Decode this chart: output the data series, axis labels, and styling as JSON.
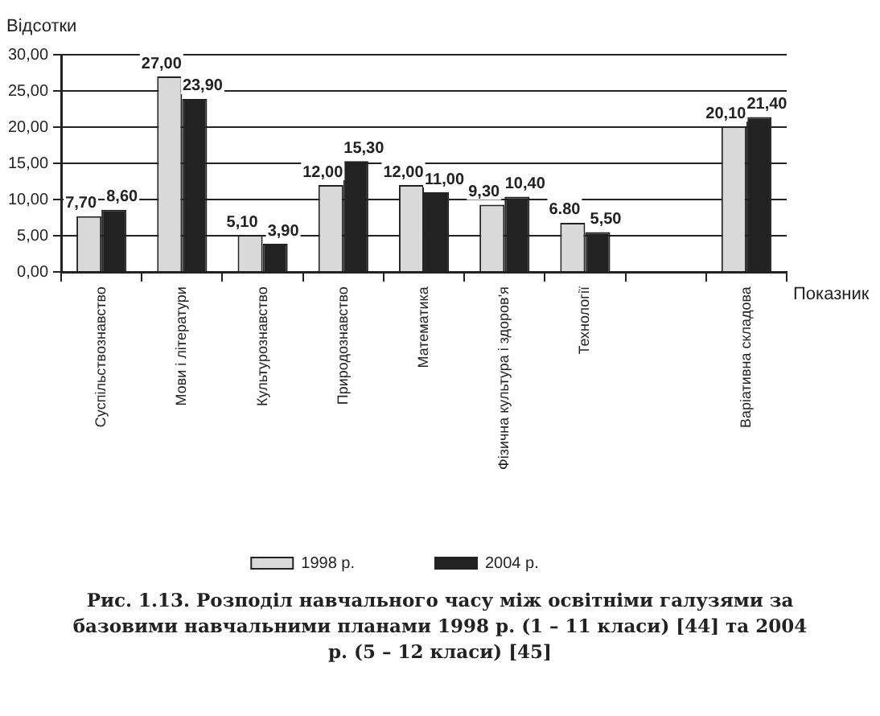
{
  "chart_data": {
    "type": "bar",
    "title": "Рис. 1.13. Розподіл навчального часу між освітніми галузями за базовими навчальними планами 1998 р. (1 – 11 класи) [44] та 2004 р. (5 – 12 класи) [45]",
    "xlabel": "Показник",
    "ylabel": "Відсотки",
    "categories": [
      "Суспільствознавство",
      "Мови і літератури",
      "Культурознавство",
      "Природознавство",
      "Математика",
      "Фізична культура і здоров'я",
      "Технології",
      null,
      "Варіативна складова"
    ],
    "series": [
      {
        "name": "1998 р.",
        "color": "#d9d9d9",
        "values": [
          7.7,
          27,
          5.1,
          12,
          12,
          9.3,
          6.8,
          null,
          20.1
        ],
        "value_labels": [
          "7,70",
          "27,00",
          "5,10",
          "12,00",
          "12,00",
          "9,30",
          "6.80",
          null,
          "20,10"
        ]
      },
      {
        "name": "2004 р.",
        "color": "#222222",
        "values": [
          8.6,
          23.9,
          3.9,
          15.3,
          11,
          10.4,
          5.5,
          null,
          21.4
        ],
        "value_labels": [
          "8,60",
          "23,90",
          "3,90",
          "15,30",
          "11,00",
          "10,40",
          "5,50",
          null,
          "21,40"
        ]
      }
    ],
    "ylim": [
      0,
      30
    ],
    "yticks": [
      {
        "value": 0,
        "label": "0,00"
      },
      {
        "value": 5,
        "label": "5,00"
      },
      {
        "value": 10,
        "label": "10,00"
      },
      {
        "value": 15,
        "label": "15,00"
      },
      {
        "value": 20,
        "label": "20,00"
      },
      {
        "value": 25,
        "label": "25,00"
      },
      {
        "value": 30,
        "label": "30,00"
      }
    ],
    "grid": "y",
    "legend": "bottom"
  }
}
